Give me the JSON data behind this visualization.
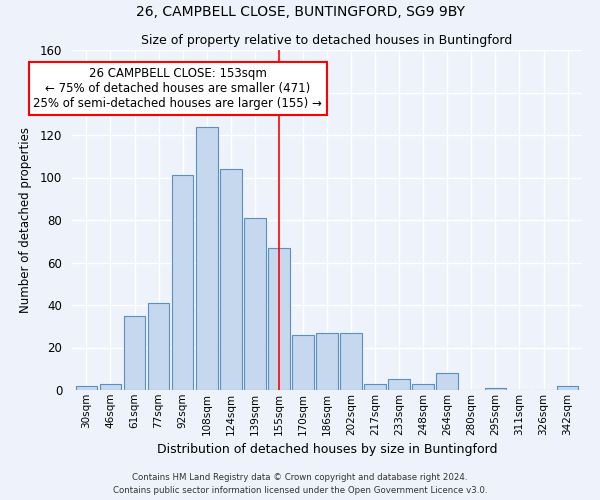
{
  "title1": "26, CAMPBELL CLOSE, BUNTINGFORD, SG9 9BY",
  "title2": "Size of property relative to detached houses in Buntingford",
  "xlabel": "Distribution of detached houses by size in Buntingford",
  "ylabel": "Number of detached properties",
  "categories": [
    "30sqm",
    "46sqm",
    "61sqm",
    "77sqm",
    "92sqm",
    "108sqm",
    "124sqm",
    "139sqm",
    "155sqm",
    "170sqm",
    "186sqm",
    "202sqm",
    "217sqm",
    "233sqm",
    "248sqm",
    "264sqm",
    "280sqm",
    "295sqm",
    "311sqm",
    "326sqm",
    "342sqm"
  ],
  "values": [
    2,
    3,
    35,
    41,
    101,
    124,
    104,
    81,
    67,
    26,
    27,
    27,
    3,
    5,
    3,
    8,
    0,
    1,
    0,
    0,
    2
  ],
  "bar_color": "#c5d8ed",
  "bar_edge_color": "#5a8fc3",
  "vline_x": 8.0,
  "vline_color": "red",
  "annotation_title": "26 CAMPBELL CLOSE: 153sqm",
  "annotation_line1": "← 75% of detached houses are smaller (471)",
  "annotation_line2": "25% of semi-detached houses are larger (155) →",
  "annotation_box_color": "white",
  "annotation_box_edge": "red",
  "ylim": [
    0,
    160
  ],
  "yticks": [
    0,
    20,
    40,
    60,
    80,
    100,
    120,
    140,
    160
  ],
  "footer1": "Contains HM Land Registry data © Crown copyright and database right 2024.",
  "footer2": "Contains public sector information licensed under the Open Government Licence v3.0.",
  "bg_color": "#eef2fa"
}
